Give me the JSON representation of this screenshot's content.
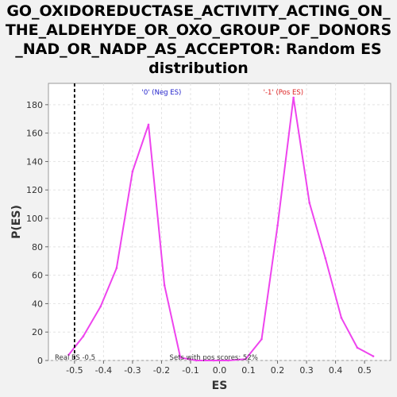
{
  "chart_data": {
    "type": "line",
    "title_lines": [
      "GO_OXIDOREDUCTASE_ACTIVITY_ACTING_ON_",
      "THE_ALDEHYDE_OR_OXO_GROUP_OF_DONORS",
      "_NAD_OR_NADP_AS_ACCEPTOR: Random ES",
      "distribution"
    ],
    "xlabel": "ES",
    "ylabel": "P(ES)",
    "xlim": [
      -0.59,
      0.59
    ],
    "ylim": [
      0,
      195
    ],
    "x_ticks": [
      "-0.5",
      "-0.4",
      "-0.3",
      "-0.2",
      "-0.1",
      "0.0",
      "0.1",
      "0.2",
      "0.3",
      "0.4",
      "0.5"
    ],
    "x_tick_values": [
      -0.5,
      -0.4,
      -0.3,
      -0.2,
      -0.1,
      0.0,
      0.1,
      0.2,
      0.3,
      0.4,
      0.5
    ],
    "y_ticks": [
      "0",
      "20",
      "40",
      "60",
      "80",
      "100",
      "120",
      "140",
      "160",
      "180"
    ],
    "y_tick_values": [
      0,
      20,
      40,
      60,
      80,
      100,
      120,
      140,
      160,
      180
    ],
    "grid": true,
    "series": [
      {
        "color": "#ee44ee",
        "x": [
          -0.52,
          -0.47,
          -0.41,
          -0.355,
          -0.3,
          -0.245,
          -0.19,
          -0.135,
          -0.08,
          -0.02,
          0.03,
          0.09,
          0.145,
          0.2,
          0.255,
          0.31,
          0.365,
          0.42,
          0.475,
          0.53
        ],
        "y": [
          4,
          17,
          38,
          65,
          133,
          166,
          53,
          2,
          0,
          0,
          0,
          1,
          15,
          95,
          185,
          111,
          72,
          30,
          9,
          3
        ]
      }
    ],
    "real_es": -0.5,
    "annotations": {
      "neg_label": "'0' (Neg ES)",
      "neg_color": "#2222cc",
      "pos_label": "'-1' (Pos ES)",
      "pos_color": "#dd2222",
      "real_es_label": "Real ES -0.5",
      "pos_scores_label": "Sets with pos scores: 52%"
    }
  }
}
